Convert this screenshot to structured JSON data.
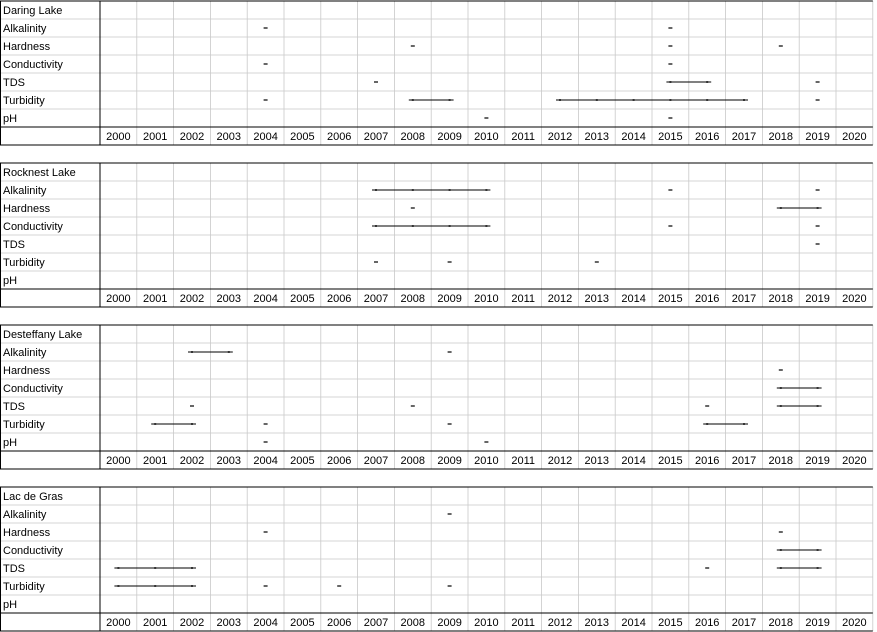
{
  "chart_data": {
    "type": "table",
    "years": [
      "2000",
      "2001",
      "2002",
      "2003",
      "2004",
      "2005",
      "2006",
      "2007",
      "2008",
      "2009",
      "2010",
      "2011",
      "2012",
      "2013",
      "2014",
      "2015",
      "2016",
      "2017",
      "2018",
      "2019",
      "2020"
    ],
    "panels": [
      {
        "name": "Daring Lake",
        "parameters": [
          {
            "label": "Alkalinity",
            "points": [
              2004,
              2015
            ],
            "ranges": []
          },
          {
            "label": "Hardness",
            "points": [
              2008,
              2015,
              2018
            ],
            "ranges": []
          },
          {
            "label": "Conductivity",
            "points": [
              2004,
              2015
            ],
            "ranges": []
          },
          {
            "label": "TDS",
            "points": [
              2007,
              2019
            ],
            "ranges": [
              [
                2015,
                2016
              ]
            ]
          },
          {
            "label": "Turbidity",
            "points": [
              2004,
              2019
            ],
            "ranges": [
              [
                2008,
                2009
              ],
              [
                2012,
                2017
              ]
            ]
          },
          {
            "label": "pH",
            "points": [
              2010,
              2015
            ],
            "ranges": []
          }
        ]
      },
      {
        "name": "Rocknest Lake",
        "parameters": [
          {
            "label": "Alkalinity",
            "points": [
              2015,
              2019
            ],
            "ranges": [
              [
                2007,
                2010
              ]
            ]
          },
          {
            "label": "Hardness",
            "points": [
              2008
            ],
            "ranges": [
              [
                2018,
                2019
              ]
            ]
          },
          {
            "label": "Conductivity",
            "points": [
              2015,
              2019
            ],
            "ranges": [
              [
                2007,
                2010
              ]
            ]
          },
          {
            "label": "TDS",
            "points": [
              2019
            ],
            "ranges": []
          },
          {
            "label": "Turbidity",
            "points": [
              2007,
              2009,
              2013
            ],
            "ranges": []
          },
          {
            "label": "pH",
            "points": [],
            "ranges": []
          }
        ]
      },
      {
        "name": "Desteffany Lake",
        "parameters": [
          {
            "label": "Alkalinity",
            "points": [
              2009
            ],
            "ranges": [
              [
                2002,
                2003
              ]
            ]
          },
          {
            "label": "Hardness",
            "points": [
              2018
            ],
            "ranges": []
          },
          {
            "label": "Conductivity",
            "points": [],
            "ranges": [
              [
                2018,
                2019
              ]
            ]
          },
          {
            "label": "TDS",
            "points": [
              2002,
              2008,
              2016
            ],
            "ranges": [
              [
                2018,
                2019
              ]
            ]
          },
          {
            "label": "Turbidity",
            "points": [
              2004,
              2009
            ],
            "ranges": [
              [
                2001,
                2002
              ],
              [
                2016,
                2017
              ]
            ]
          },
          {
            "label": "pH",
            "points": [
              2004,
              2010
            ],
            "ranges": []
          }
        ]
      },
      {
        "name": "Lac de Gras",
        "parameters": [
          {
            "label": "Alkalinity",
            "points": [
              2009
            ],
            "ranges": []
          },
          {
            "label": "Hardness",
            "points": [
              2004,
              2018
            ],
            "ranges": []
          },
          {
            "label": "Conductivity",
            "points": [],
            "ranges": [
              [
                2018,
                2019
              ]
            ]
          },
          {
            "label": "TDS",
            "points": [
              2016
            ],
            "ranges": [
              [
                2000,
                2002
              ],
              [
                2018,
                2019
              ]
            ]
          },
          {
            "label": "Turbidity",
            "points": [
              2004,
              2006,
              2009
            ],
            "ranges": [
              [
                2000,
                2002
              ]
            ]
          },
          {
            "label": "pH",
            "points": [],
            "ranges": []
          }
        ]
      }
    ]
  }
}
